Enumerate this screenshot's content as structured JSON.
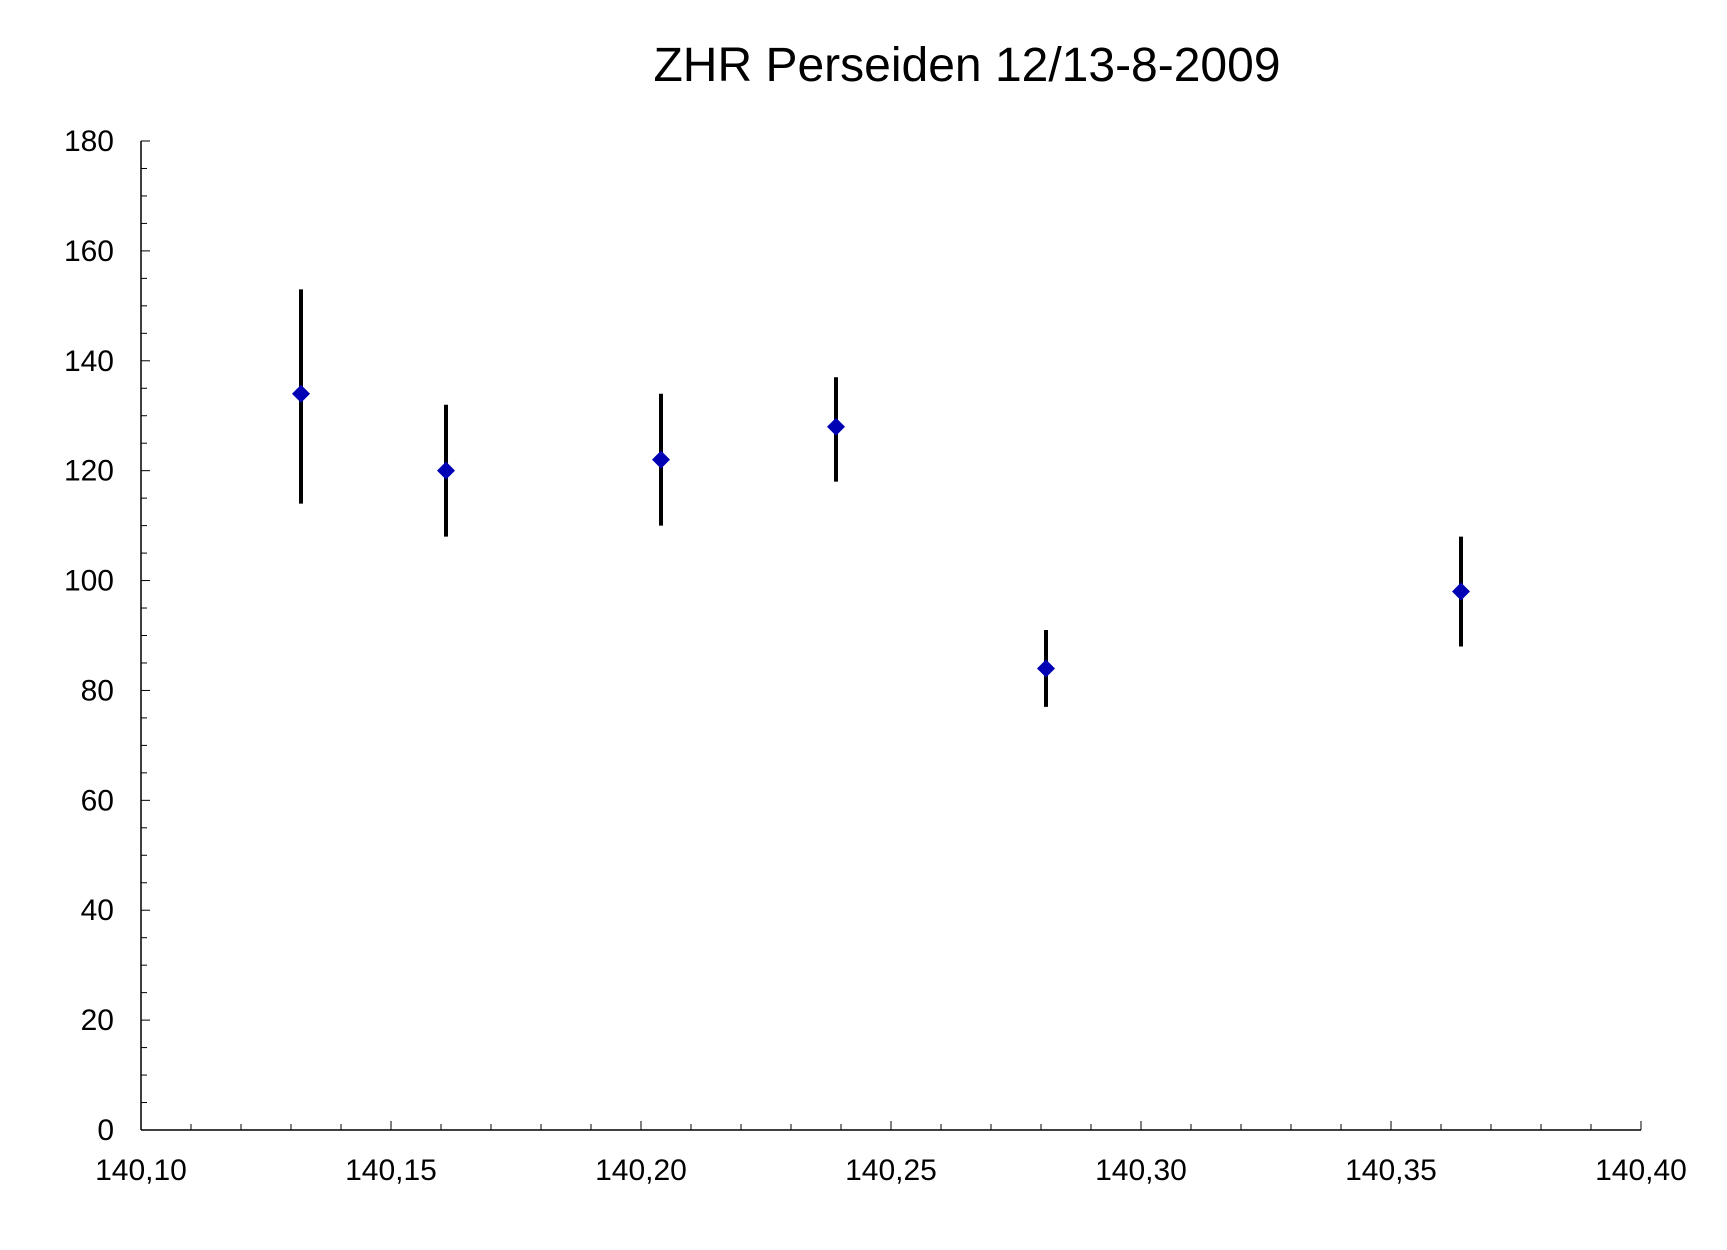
{
  "chart_data": {
    "type": "scatter",
    "title": "ZHR Perseiden 12/13-8-2009",
    "xlabel": "",
    "ylabel": "",
    "xlim": [
      140.1,
      140.4
    ],
    "ylim": [
      0,
      180
    ],
    "x_major_ticks": [
      140.1,
      140.15,
      140.2,
      140.25,
      140.3,
      140.35,
      140.4
    ],
    "x_tick_labels": [
      "140,10",
      "140,15",
      "140,20",
      "140,25",
      "140,30",
      "140,35",
      "140,40"
    ],
    "y_major_ticks": [
      0,
      20,
      40,
      60,
      80,
      100,
      120,
      140,
      160,
      180
    ],
    "y_tick_labels": [
      "0",
      "20",
      "40",
      "60",
      "80",
      "100",
      "120",
      "140",
      "160",
      "180"
    ],
    "grid": false,
    "legend": "none",
    "marker_color": "#0000b4",
    "errorbar_color": "#000000",
    "series": [
      {
        "x": [
          140.132,
          140.161,
          140.204,
          140.239,
          140.281,
          140.364
        ],
        "y": [
          134,
          120,
          122,
          128,
          84,
          98
        ],
        "y_err_low": [
          114,
          108,
          110,
          118,
          77,
          88
        ],
        "y_err_high": [
          153,
          132,
          134,
          137,
          91,
          108
        ]
      }
    ]
  }
}
